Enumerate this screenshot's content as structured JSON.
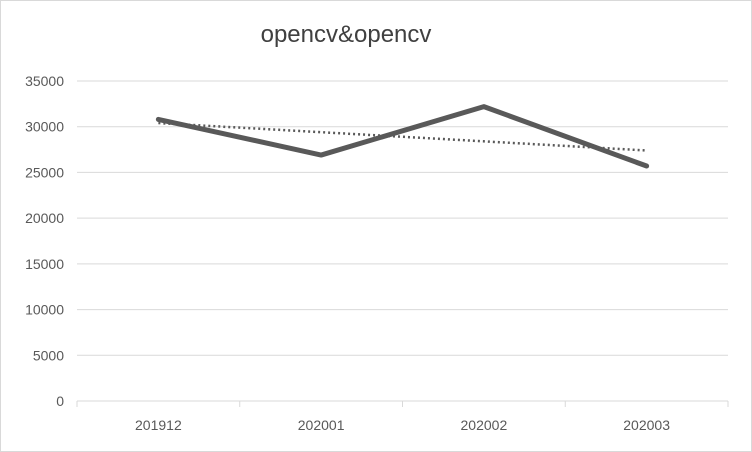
{
  "chart_data": {
    "type": "line",
    "title": "opencv&opencv",
    "categories": [
      "201912",
      "202001",
      "202002",
      "202003"
    ],
    "series": [
      {
        "values": [
          30800,
          26900,
          32200,
          25700
        ],
        "color": "#595959",
        "style": "solid"
      }
    ],
    "trendline": {
      "type": "linear",
      "style": "dotted",
      "color": "#595959"
    },
    "yticks": [
      0,
      5000,
      10000,
      15000,
      20000,
      25000,
      30000,
      35000
    ],
    "ylim": [
      0,
      35000
    ],
    "grid": true,
    "legend": "none",
    "xlabel": "",
    "ylabel": ""
  }
}
